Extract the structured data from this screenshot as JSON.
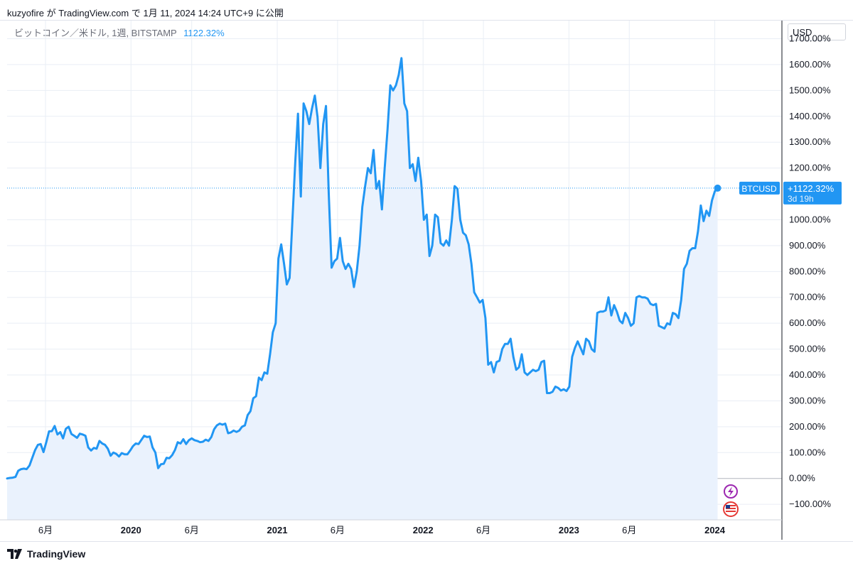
{
  "header": {
    "publish_text": "kuzyofire が TradingView.com で 1月 11, 2024 14:24 UTC+9 に公開"
  },
  "legend": {
    "symbol_text": "ビットコイン／米ドル, 1週, BITSTAMP",
    "value": "1122.32%"
  },
  "price_scale": {
    "currency": "USD"
  },
  "last_value": {
    "symbol_tag": "BTCUSD",
    "value_label": "+1122.32%",
    "countdown": "3d 19h"
  },
  "footer": {
    "brand": "TradingView"
  },
  "colors": {
    "line": "#2196f3",
    "area": "#eaf2fd",
    "grid": "#e9eef5",
    "zero_line": "#b2b5be",
    "axis_text": "#131722"
  },
  "icons": {
    "event_1": "lightning-icon",
    "event_2": "us-flag-icon"
  },
  "chart_data": {
    "type": "area",
    "ylabel": "",
    "ylim": [
      -160,
      1770
    ],
    "y_ticks": [
      1700,
      1600,
      1500,
      1400,
      1300,
      1200,
      1000,
      900,
      800,
      700,
      600,
      500,
      400,
      300,
      200,
      100,
      0,
      -100
    ],
    "y_tick_labels": [
      "1700.00%",
      "1600.00%",
      "1500.00%",
      "1400.00%",
      "1300.00%",
      "1200.00%",
      "1000.00%",
      "900.00%",
      "800.00%",
      "700.00%",
      "600.00%",
      "500.00%",
      "400.00%",
      "300.00%",
      "200.00%",
      "100.00%",
      "0.00%",
      "−100.00%"
    ],
    "xlim": [
      "2019-02-25",
      "2024-06-17"
    ],
    "x_ticks": [
      {
        "date": "2019-06-01",
        "label": "6月",
        "bold": false
      },
      {
        "date": "2020-01-01",
        "label": "2020",
        "bold": true
      },
      {
        "date": "2020-06-01",
        "label": "6月",
        "bold": false
      },
      {
        "date": "2021-01-01",
        "label": "2021",
        "bold": true
      },
      {
        "date": "2021-06-01",
        "label": "6月",
        "bold": false
      },
      {
        "date": "2022-01-01",
        "label": "2022",
        "bold": true
      },
      {
        "date": "2022-06-01",
        "label": "6月",
        "bold": false
      },
      {
        "date": "2023-01-01",
        "label": "2023",
        "bold": true
      },
      {
        "date": "2023-06-01",
        "label": "6月",
        "bold": false
      },
      {
        "date": "2024-01-01",
        "label": "2024",
        "bold": true
      }
    ],
    "series": [
      {
        "values": [
          [
            "2019-02-25",
            0
          ],
          [
            "2019-03-04",
            2
          ],
          [
            "2019-03-11",
            3
          ],
          [
            "2019-03-18",
            6
          ],
          [
            "2019-03-25",
            30
          ],
          [
            "2019-04-01",
            36
          ],
          [
            "2019-04-08",
            38
          ],
          [
            "2019-04-15",
            36
          ],
          [
            "2019-04-22",
            50
          ],
          [
            "2019-04-29",
            80
          ],
          [
            "2019-05-06",
            110
          ],
          [
            "2019-05-13",
            130
          ],
          [
            "2019-05-20",
            133
          ],
          [
            "2019-05-27",
            102
          ],
          [
            "2019-06-03",
            140
          ],
          [
            "2019-06-10",
            182
          ],
          [
            "2019-06-17",
            183
          ],
          [
            "2019-06-24",
            203
          ],
          [
            "2019-07-01",
            170
          ],
          [
            "2019-07-08",
            179
          ],
          [
            "2019-07-15",
            155
          ],
          [
            "2019-07-22",
            192
          ],
          [
            "2019-07-29",
            200
          ],
          [
            "2019-08-05",
            172
          ],
          [
            "2019-08-12",
            165
          ],
          [
            "2019-08-19",
            157
          ],
          [
            "2019-08-26",
            173
          ],
          [
            "2019-09-02",
            170
          ],
          [
            "2019-09-09",
            165
          ],
          [
            "2019-09-16",
            120
          ],
          [
            "2019-09-23",
            108
          ],
          [
            "2019-09-30",
            118
          ],
          [
            "2019-10-07",
            115
          ],
          [
            "2019-10-14",
            145
          ],
          [
            "2019-10-21",
            135
          ],
          [
            "2019-10-28",
            130
          ],
          [
            "2019-11-04",
            115
          ],
          [
            "2019-11-11",
            88
          ],
          [
            "2019-11-18",
            100
          ],
          [
            "2019-11-25",
            95
          ],
          [
            "2019-12-02",
            85
          ],
          [
            "2019-12-09",
            98
          ],
          [
            "2019-12-16",
            93
          ],
          [
            "2019-12-23",
            93
          ],
          [
            "2019-12-30",
            108
          ],
          [
            "2020-01-06",
            125
          ],
          [
            "2020-01-13",
            135
          ],
          [
            "2020-01-20",
            133
          ],
          [
            "2020-02-03",
            165
          ],
          [
            "2020-02-10",
            160
          ],
          [
            "2020-02-17",
            162
          ],
          [
            "2020-02-24",
            120
          ],
          [
            "2020-03-02",
            100
          ],
          [
            "2020-03-09",
            40
          ],
          [
            "2020-03-16",
            55
          ],
          [
            "2020-03-23",
            57
          ],
          [
            "2020-03-30",
            80
          ],
          [
            "2020-04-06",
            78
          ],
          [
            "2020-04-13",
            90
          ],
          [
            "2020-04-20",
            110
          ],
          [
            "2020-04-27",
            140
          ],
          [
            "2020-05-04",
            135
          ],
          [
            "2020-05-11",
            152
          ],
          [
            "2020-05-18",
            133
          ],
          [
            "2020-05-25",
            148
          ],
          [
            "2020-06-01",
            155
          ],
          [
            "2020-06-08",
            148
          ],
          [
            "2020-06-15",
            145
          ],
          [
            "2020-06-22",
            140
          ],
          [
            "2020-06-29",
            142
          ],
          [
            "2020-07-06",
            150
          ],
          [
            "2020-07-13",
            145
          ],
          [
            "2020-07-20",
            160
          ],
          [
            "2020-07-27",
            190
          ],
          [
            "2020-08-03",
            205
          ],
          [
            "2020-08-10",
            212
          ],
          [
            "2020-08-17",
            208
          ],
          [
            "2020-08-24",
            212
          ],
          [
            "2020-08-31",
            175
          ],
          [
            "2020-09-07",
            178
          ],
          [
            "2020-09-14",
            185
          ],
          [
            "2020-09-21",
            180
          ],
          [
            "2020-09-28",
            185
          ],
          [
            "2020-10-05",
            200
          ],
          [
            "2020-10-12",
            205
          ],
          [
            "2020-10-19",
            245
          ],
          [
            "2020-10-26",
            260
          ],
          [
            "2020-11-02",
            310
          ],
          [
            "2020-11-09",
            318
          ],
          [
            "2020-11-16",
            390
          ],
          [
            "2020-11-23",
            380
          ],
          [
            "2020-11-30",
            410
          ],
          [
            "2020-12-07",
            405
          ],
          [
            "2020-12-14",
            480
          ],
          [
            "2020-12-21",
            565
          ],
          [
            "2020-12-28",
            600
          ],
          [
            "2021-01-04",
            850
          ],
          [
            "2021-01-11",
            905
          ],
          [
            "2021-01-18",
            830
          ],
          [
            "2021-01-25",
            750
          ],
          [
            "2021-02-01",
            775
          ],
          [
            "2021-02-08",
            1000
          ],
          [
            "2021-02-15",
            1220
          ],
          [
            "2021-02-22",
            1410
          ],
          [
            "2021-03-01",
            1090
          ],
          [
            "2021-03-08",
            1450
          ],
          [
            "2021-03-15",
            1420
          ],
          [
            "2021-03-22",
            1370
          ],
          [
            "2021-03-29",
            1430
          ],
          [
            "2021-04-05",
            1480
          ],
          [
            "2021-04-12",
            1395
          ],
          [
            "2021-04-19",
            1200
          ],
          [
            "2021-04-26",
            1370
          ],
          [
            "2021-05-03",
            1440
          ],
          [
            "2021-05-10",
            1100
          ],
          [
            "2021-05-17",
            815
          ],
          [
            "2021-05-24",
            840
          ],
          [
            "2021-05-31",
            850
          ],
          [
            "2021-06-07",
            930
          ],
          [
            "2021-06-14",
            840
          ],
          [
            "2021-06-21",
            810
          ],
          [
            "2021-06-28",
            830
          ],
          [
            "2021-07-05",
            810
          ],
          [
            "2021-07-12",
            740
          ],
          [
            "2021-07-19",
            800
          ],
          [
            "2021-07-26",
            900
          ],
          [
            "2021-08-02",
            1050
          ],
          [
            "2021-08-09",
            1130
          ],
          [
            "2021-08-16",
            1200
          ],
          [
            "2021-08-23",
            1180
          ],
          [
            "2021-08-30",
            1270
          ],
          [
            "2021-09-06",
            1120
          ],
          [
            "2021-09-13",
            1150
          ],
          [
            "2021-09-20",
            1040
          ],
          [
            "2021-09-27",
            1200
          ],
          [
            "2021-10-04",
            1350
          ],
          [
            "2021-10-11",
            1520
          ],
          [
            "2021-10-18",
            1500
          ],
          [
            "2021-10-25",
            1520
          ],
          [
            "2021-11-01",
            1560
          ],
          [
            "2021-11-08",
            1625
          ],
          [
            "2021-11-15",
            1450
          ],
          [
            "2021-11-22",
            1420
          ],
          [
            "2021-11-29",
            1200
          ],
          [
            "2021-12-06",
            1215
          ],
          [
            "2021-12-13",
            1150
          ],
          [
            "2021-12-20",
            1240
          ],
          [
            "2021-12-27",
            1150
          ],
          [
            "2022-01-03",
            1000
          ],
          [
            "2022-01-10",
            1020
          ],
          [
            "2022-01-17",
            860
          ],
          [
            "2022-01-24",
            900
          ],
          [
            "2022-01-31",
            1020
          ],
          [
            "2022-02-07",
            1010
          ],
          [
            "2022-02-14",
            910
          ],
          [
            "2022-02-21",
            900
          ],
          [
            "2022-02-28",
            920
          ],
          [
            "2022-03-07",
            900
          ],
          [
            "2022-03-14",
            1000
          ],
          [
            "2022-03-21",
            1130
          ],
          [
            "2022-03-28",
            1120
          ],
          [
            "2022-04-04",
            1000
          ],
          [
            "2022-04-11",
            950
          ],
          [
            "2022-04-18",
            940
          ],
          [
            "2022-04-25",
            905
          ],
          [
            "2022-05-02",
            830
          ],
          [
            "2022-05-09",
            720
          ],
          [
            "2022-05-16",
            700
          ],
          [
            "2022-05-23",
            680
          ],
          [
            "2022-05-30",
            690
          ],
          [
            "2022-06-06",
            620
          ],
          [
            "2022-06-13",
            440
          ],
          [
            "2022-06-20",
            450
          ],
          [
            "2022-06-27",
            410
          ],
          [
            "2022-07-04",
            450
          ],
          [
            "2022-07-11",
            455
          ],
          [
            "2022-07-18",
            500
          ],
          [
            "2022-07-25",
            520
          ],
          [
            "2022-08-01",
            520
          ],
          [
            "2022-08-08",
            540
          ],
          [
            "2022-08-15",
            470
          ],
          [
            "2022-08-22",
            420
          ],
          [
            "2022-08-29",
            430
          ],
          [
            "2022-09-05",
            480
          ],
          [
            "2022-09-12",
            410
          ],
          [
            "2022-09-19",
            400
          ],
          [
            "2022-09-26",
            410
          ],
          [
            "2022-10-03",
            420
          ],
          [
            "2022-10-10",
            415
          ],
          [
            "2022-10-17",
            420
          ],
          [
            "2022-10-24",
            450
          ],
          [
            "2022-10-31",
            455
          ],
          [
            "2022-11-07",
            330
          ],
          [
            "2022-11-14",
            330
          ],
          [
            "2022-11-21",
            335
          ],
          [
            "2022-11-28",
            355
          ],
          [
            "2022-12-05",
            350
          ],
          [
            "2022-12-12",
            340
          ],
          [
            "2022-12-19",
            345
          ],
          [
            "2022-12-26",
            338
          ],
          [
            "2023-01-02",
            355
          ],
          [
            "2023-01-09",
            470
          ],
          [
            "2023-01-16",
            505
          ],
          [
            "2023-01-23",
            530
          ],
          [
            "2023-01-30",
            505
          ],
          [
            "2023-02-06",
            480
          ],
          [
            "2023-02-13",
            540
          ],
          [
            "2023-02-20",
            530
          ],
          [
            "2023-02-27",
            500
          ],
          [
            "2023-03-06",
            490
          ],
          [
            "2023-03-13",
            640
          ],
          [
            "2023-03-20",
            645
          ],
          [
            "2023-03-27",
            645
          ],
          [
            "2023-04-03",
            650
          ],
          [
            "2023-04-10",
            700
          ],
          [
            "2023-04-17",
            630
          ],
          [
            "2023-04-24",
            670
          ],
          [
            "2023-05-01",
            645
          ],
          [
            "2023-05-08",
            610
          ],
          [
            "2023-05-15",
            600
          ],
          [
            "2023-05-22",
            640
          ],
          [
            "2023-05-29",
            620
          ],
          [
            "2023-06-05",
            590
          ],
          [
            "2023-06-12",
            600
          ],
          [
            "2023-06-19",
            700
          ],
          [
            "2023-06-26",
            705
          ],
          [
            "2023-07-03",
            700
          ],
          [
            "2023-07-10",
            700
          ],
          [
            "2023-07-17",
            695
          ],
          [
            "2023-07-24",
            675
          ],
          [
            "2023-07-31",
            670
          ],
          [
            "2023-08-07",
            675
          ],
          [
            "2023-08-14",
            590
          ],
          [
            "2023-08-21",
            585
          ],
          [
            "2023-08-28",
            580
          ],
          [
            "2023-09-04",
            600
          ],
          [
            "2023-09-11",
            595
          ],
          [
            "2023-09-18",
            640
          ],
          [
            "2023-09-25",
            635
          ],
          [
            "2023-10-02",
            620
          ],
          [
            "2023-10-09",
            690
          ],
          [
            "2023-10-16",
            810
          ],
          [
            "2023-10-23",
            830
          ],
          [
            "2023-10-30",
            880
          ],
          [
            "2023-11-06",
            890
          ],
          [
            "2023-11-13",
            890
          ],
          [
            "2023-11-20",
            955
          ],
          [
            "2023-11-27",
            1055
          ],
          [
            "2023-12-04",
            995
          ],
          [
            "2023-12-11",
            1035
          ],
          [
            "2023-12-18",
            1015
          ],
          [
            "2023-12-25",
            1075
          ],
          [
            "2024-01-01",
            1110
          ],
          [
            "2024-01-08",
            1122.32
          ]
        ]
      }
    ]
  }
}
